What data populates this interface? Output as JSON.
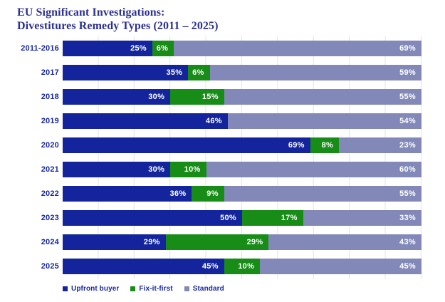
{
  "title": {
    "line1": "EU Significant Investigations:",
    "line2": "Divestitures Remedy Types (2011 – 2025)"
  },
  "colors": {
    "upfront_buyer": "#13249c",
    "fix_it_first": "#178c17",
    "standard": "#8289b8",
    "title_text": "#2c3190",
    "axis_label_text": "#1828a4",
    "segment_label_text": "#ffffff",
    "gridline": "#e4e4e8",
    "background": "#ffffff"
  },
  "chart_data": {
    "type": "bar",
    "orientation": "horizontal",
    "stacked": true,
    "unit": "%",
    "title": "EU Significant Investigations: Divestitures Remedy Types (2011 – 2025)",
    "categories": [
      "2011-2016",
      "2017",
      "2018",
      "2019",
      "2020",
      "2021",
      "2022",
      "2023",
      "2024",
      "2025"
    ],
    "series": [
      {
        "name": "Upfront buyer",
        "color": "#13249c",
        "values": [
          25,
          35,
          30,
          46,
          69,
          30,
          36,
          50,
          29,
          45
        ]
      },
      {
        "name": "Fix-it-first",
        "color": "#178c17",
        "values": [
          6,
          6,
          15,
          0,
          8,
          10,
          9,
          17,
          29,
          10
        ]
      },
      {
        "name": "Standard",
        "color": "#8289b8",
        "values": [
          69,
          59,
          55,
          54,
          23,
          60,
          55,
          33,
          43,
          45
        ]
      }
    ],
    "xlim": [
      0,
      100
    ],
    "gridlines_every_percent": 10,
    "legend_position": "bottom",
    "value_labels": "inside-right"
  },
  "legend": {
    "items": [
      {
        "label": "Upfront buyer",
        "color": "#13249c"
      },
      {
        "label": "Fix-it-first",
        "color": "#178c17"
      },
      {
        "label": "Standard",
        "color": "#8289b8"
      }
    ]
  }
}
